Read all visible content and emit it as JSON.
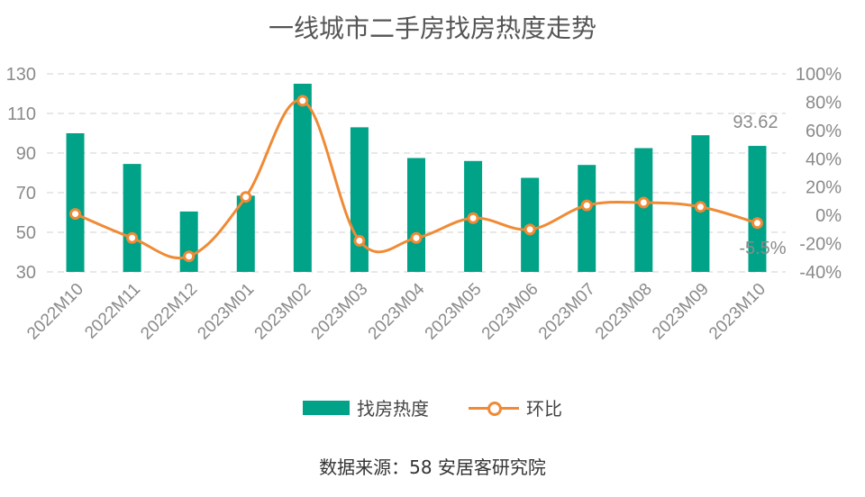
{
  "colors": {
    "bar": "#00A388",
    "line": "#F08A35",
    "grid": "#d9d9d9",
    "text": "#8a8a8a"
  },
  "chart_data": {
    "type": "bar+line",
    "title": "一线城市二手房找房热度走势",
    "categories": [
      "2022M10",
      "2022M11",
      "2022M12",
      "2023M01",
      "2023M02",
      "2023M03",
      "2023M04",
      "2023M05",
      "2023M06",
      "2023M07",
      "2023M08",
      "2023M09",
      "2023M10"
    ],
    "series": [
      {
        "name": "找房热度",
        "type": "bar",
        "axis": "left",
        "values": [
          100,
          84.5,
          60.5,
          68.5,
          125,
          103,
          87.5,
          86,
          77.5,
          84,
          92.5,
          99,
          93.62
        ]
      },
      {
        "name": "环比",
        "type": "line",
        "axis": "right",
        "unit": "%",
        "values": [
          1,
          -16,
          -29,
          13,
          81,
          -18,
          -16,
          -2,
          -10,
          7,
          9,
          6,
          -5.5
        ]
      }
    ],
    "y_left": {
      "min": 30,
      "max": 130,
      "ticks": [
        30,
        50,
        70,
        90,
        110,
        130
      ]
    },
    "y_right": {
      "min": -40,
      "max": 100,
      "ticks": [
        "-40%",
        "-20%",
        "0%",
        "20%",
        "40%",
        "60%",
        "80%",
        "100%"
      ]
    },
    "data_labels": {
      "bar_last": "93.62",
      "line_last": "-5.5%"
    },
    "grid": true,
    "legend_position": "bottom"
  },
  "legend": {
    "bar": "找房热度",
    "line": "环比"
  },
  "source": "数据来源：58 安居客研究院"
}
